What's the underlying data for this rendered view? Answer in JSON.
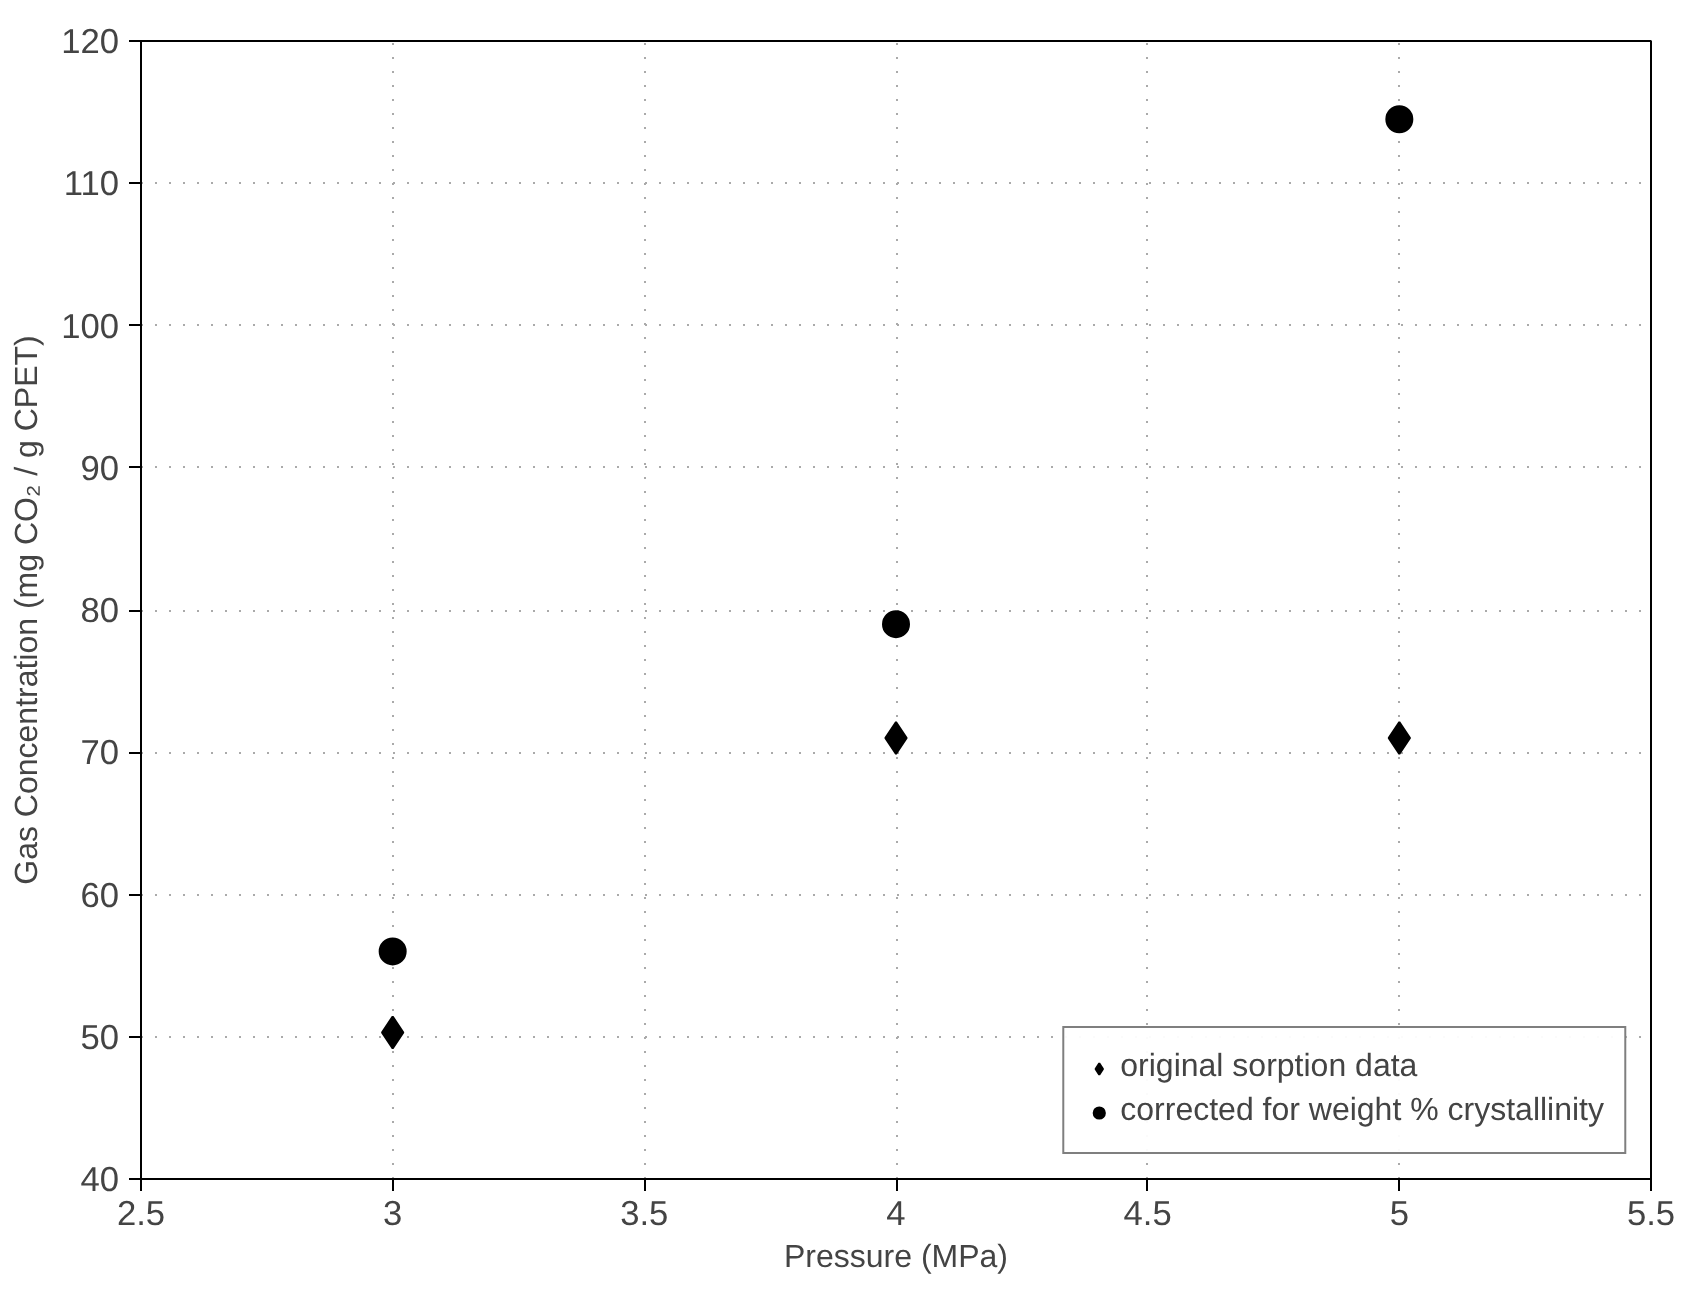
{
  "chart_data": {
    "type": "scatter",
    "xlabel": "Pressure (MPa)",
    "ylabel": "Gas Concentration (mg CO₂ / g CPET)",
    "x": [
      3,
      4,
      5
    ],
    "series": [
      {
        "name": "original sorption data",
        "color": "#000000",
        "marker": "diamond",
        "values": [
          50.3,
          71,
          71
        ]
      },
      {
        "name": "corrected for weight % crystallinity",
        "color": "#000000",
        "marker": "circle",
        "values": [
          56,
          79,
          114.5
        ]
      }
    ],
    "xlim": [
      2.5,
      5.5
    ],
    "xticks": [
      2.5,
      3,
      3.5,
      4,
      4.5,
      5,
      5.5
    ],
    "ylim": [
      40,
      120
    ],
    "yticks": [
      40,
      50,
      60,
      70,
      80,
      90,
      100,
      110,
      120
    ],
    "grid": true,
    "legend": "bottom right"
  }
}
